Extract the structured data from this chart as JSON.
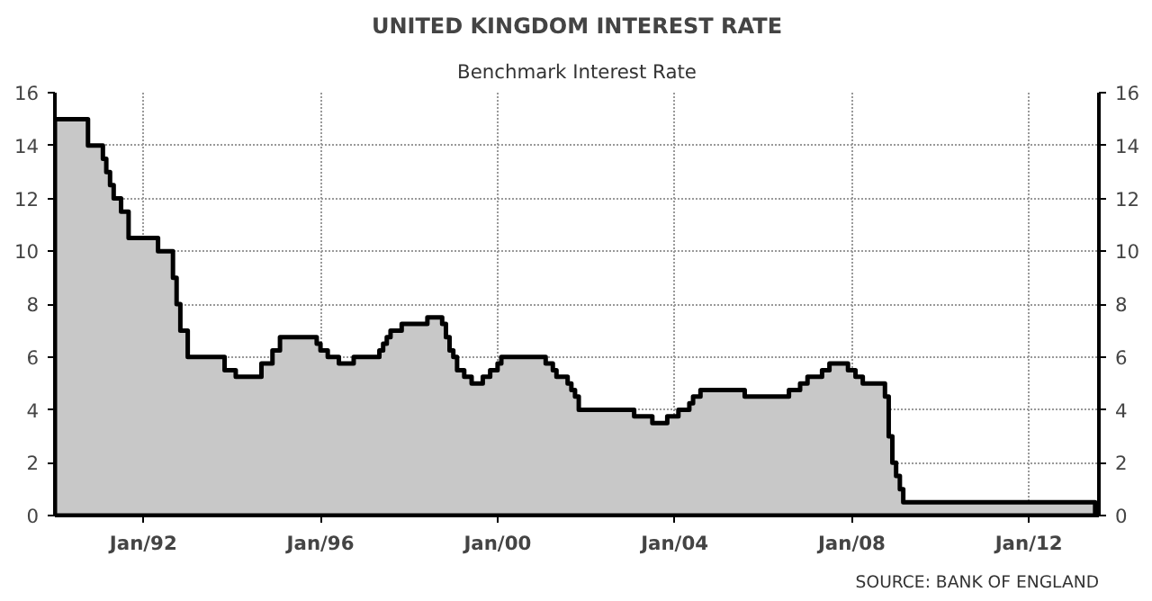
{
  "chart_data": {
    "type": "area",
    "title": "UNITED KINGDOM INTEREST RATE",
    "subtitle": "Benchmark Interest Rate",
    "annotations": [
      "SOURCE: BANK OF ENGLAND"
    ],
    "x": [
      "1990-01",
      "1990-10",
      "1991-02",
      "1991-03",
      "1991-04",
      "1991-05",
      "1991-07",
      "1991-09",
      "1992-05",
      "1992-09",
      "1992-10",
      "1992-11",
      "1993-01",
      "1993-11",
      "1994-02",
      "1994-09",
      "1994-12",
      "1995-02",
      "1995-12",
      "1996-01",
      "1996-03",
      "1996-06",
      "1996-10",
      "1997-05",
      "1997-06",
      "1997-07",
      "1997-08",
      "1997-11",
      "1998-06",
      "1998-10",
      "1998-11",
      "1998-12",
      "1999-01",
      "1999-02",
      "1999-04",
      "1999-06",
      "1999-09",
      "1999-11",
      "2000-01",
      "2000-02",
      "2001-02",
      "2001-04",
      "2001-05",
      "2001-08",
      "2001-09",
      "2001-10",
      "2001-11",
      "2003-02",
      "2003-07",
      "2003-11",
      "2004-02",
      "2004-05",
      "2004-06",
      "2004-08",
      "2005-08",
      "2006-08",
      "2006-11",
      "2007-01",
      "2007-05",
      "2007-07",
      "2007-12",
      "2008-02",
      "2008-04",
      "2008-10",
      "2008-11",
      "2008-12",
      "2009-01",
      "2009-02",
      "2009-03",
      "2013-07"
    ],
    "series": [
      {
        "color": "#c8c8c8",
        "values": [
          15,
          14,
          13.5,
          13,
          12.5,
          12,
          11.5,
          10.5,
          10,
          9,
          8,
          7,
          6,
          5.5,
          5.25,
          5.75,
          6.25,
          6.75,
          6.5,
          6.25,
          6,
          5.75,
          6,
          6.25,
          6.5,
          6.75,
          7,
          7.25,
          7.5,
          7.25,
          6.75,
          6.25,
          6,
          5.5,
          5.25,
          5,
          5.25,
          5.5,
          5.75,
          6,
          5.75,
          5.5,
          5.25,
          5,
          4.75,
          4.5,
          4,
          3.75,
          3.5,
          3.75,
          4,
          4.25,
          4.5,
          4.75,
          4.5,
          4.75,
          5,
          5.25,
          5.5,
          5.75,
          5.5,
          5.25,
          5,
          4.5,
          3,
          2,
          1.5,
          1,
          0.5,
          0.5
        ]
      }
    ],
    "xlim": [
      "1990-01",
      "2013-08"
    ],
    "xticks": [
      {
        "value": "1992-01",
        "label": "Jan/92"
      },
      {
        "value": "1996-01",
        "label": "Jan/96"
      },
      {
        "value": "2000-01",
        "label": "Jan/00"
      },
      {
        "value": "2004-01",
        "label": "Jan/04"
      },
      {
        "value": "2008-01",
        "label": "Jan/08"
      },
      {
        "value": "2012-01",
        "label": "Jan/12"
      }
    ],
    "ylim": [
      0,
      16
    ],
    "yticks": [
      0,
      2,
      4,
      6,
      8,
      10,
      12,
      14,
      16
    ],
    "y2lim": [
      0,
      16
    ],
    "y2ticks": [
      0,
      2,
      4,
      6,
      8,
      10,
      12,
      14,
      16
    ],
    "grid": true
  }
}
